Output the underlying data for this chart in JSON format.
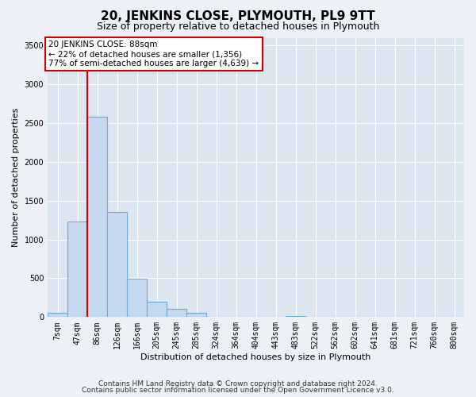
{
  "title": "20, JENKINS CLOSE, PLYMOUTH, PL9 9TT",
  "subtitle": "Size of property relative to detached houses in Plymouth",
  "xlabel": "Distribution of detached houses by size in Plymouth",
  "ylabel": "Number of detached properties",
  "bar_labels": [
    "7sqm",
    "47sqm",
    "86sqm",
    "126sqm",
    "166sqm",
    "205sqm",
    "245sqm",
    "285sqm",
    "324sqm",
    "364sqm",
    "404sqm",
    "443sqm",
    "483sqm",
    "522sqm",
    "562sqm",
    "602sqm",
    "641sqm",
    "681sqm",
    "721sqm",
    "760sqm",
    "800sqm"
  ],
  "bar_values": [
    50,
    1230,
    2580,
    1350,
    490,
    195,
    110,
    50,
    8,
    0,
    0,
    0,
    18,
    0,
    0,
    0,
    0,
    0,
    0,
    0,
    0
  ],
  "ylim": [
    0,
    3600
  ],
  "yticks": [
    0,
    500,
    1000,
    1500,
    2000,
    2500,
    3000,
    3500
  ],
  "bar_color": "#c5d8f0",
  "bar_edge_color": "#6eaad4",
  "vline_color": "#cc0000",
  "annotation_title": "20 JENKINS CLOSE: 88sqm",
  "annotation_line1": "← 22% of detached houses are smaller (1,356)",
  "annotation_line2": "77% of semi-detached houses are larger (4,639) →",
  "annotation_box_facecolor": "white",
  "annotation_box_edgecolor": "#cc0000",
  "footer1": "Contains HM Land Registry data © Crown copyright and database right 2024.",
  "footer2": "Contains public sector information licensed under the Open Government Licence v3.0.",
  "background_color": "#edf1f7",
  "plot_bg_color": "#dce6f0",
  "grid_color": "white",
  "title_fontsize": 11,
  "subtitle_fontsize": 9,
  "tick_fontsize": 7,
  "label_fontsize": 8,
  "footer_fontsize": 6.5
}
